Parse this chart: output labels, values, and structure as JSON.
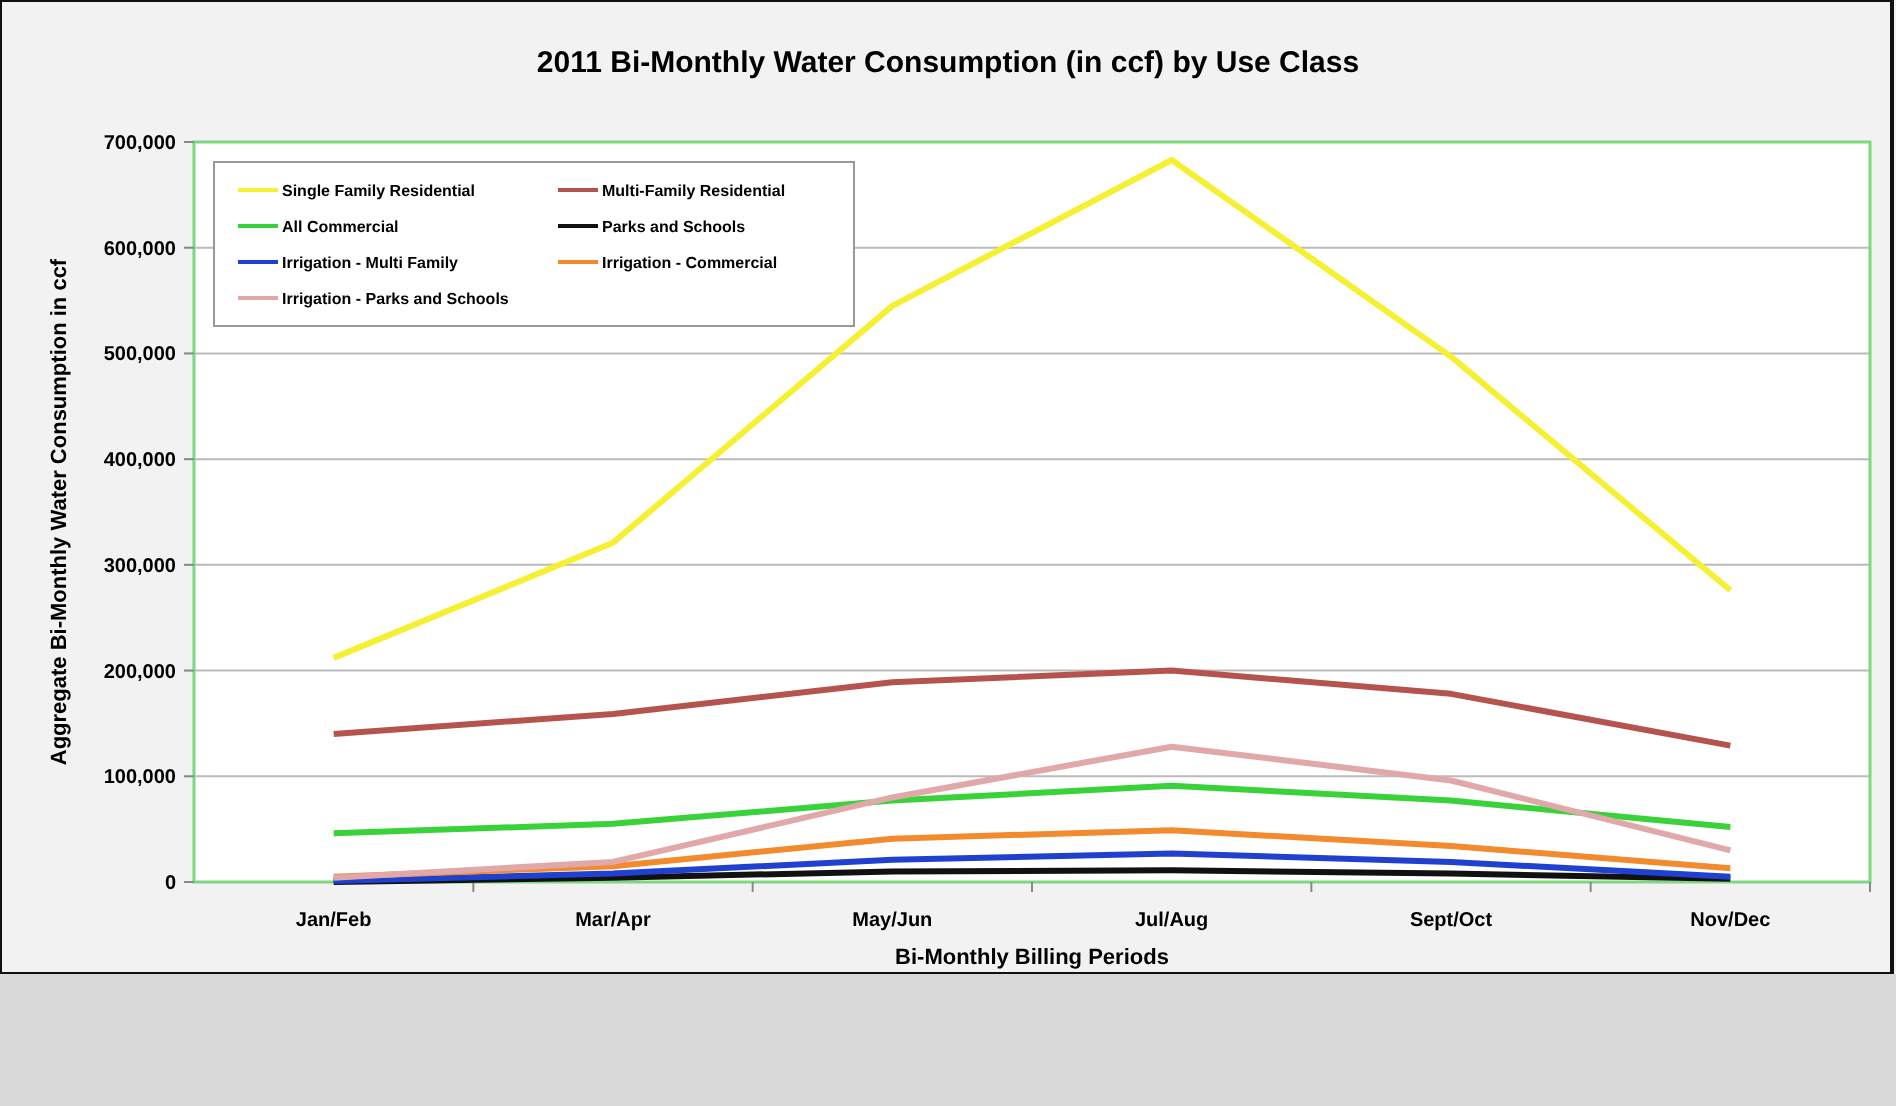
{
  "chart_data": {
    "type": "line",
    "title": "2011 Bi-Monthly Water Consumption (in ccf) by Use Class",
    "xlabel": "Bi-Monthly Billing Periods",
    "ylabel": "Aggregate Bi-Monthly Water Consumption in ccf",
    "categories": [
      "Jan/Feb",
      "Mar/Apr",
      "May/Jun",
      "Jul/Aug",
      "Sept/Oct",
      "Nov/Dec"
    ],
    "ylim": [
      0,
      700000
    ],
    "yticks": [
      {
        "value": 0,
        "label": "0"
      },
      {
        "value": 100000,
        "label": "100,000"
      },
      {
        "value": 200000,
        "label": "200,000"
      },
      {
        "value": 300000,
        "label": "300,000"
      },
      {
        "value": 400000,
        "label": "400,000"
      },
      {
        "value": 500000,
        "label": "500,000"
      },
      {
        "value": 600000,
        "label": "600,000"
      },
      {
        "value": 700000,
        "label": "700,000"
      }
    ],
    "grid": "y",
    "legend": "top left",
    "marker": "none",
    "series": [
      {
        "name": "Single Family Residential",
        "color": "#f5f032",
        "values": [
          212000,
          321000,
          545000,
          683000,
          497000,
          276000
        ]
      },
      {
        "name": "Multi-Family Residential",
        "color": "#b5534f",
        "values": [
          140000,
          159000,
          189000,
          200000,
          178000,
          129000
        ]
      },
      {
        "name": "All Commercial",
        "color": "#3ad23a",
        "values": [
          46000,
          55000,
          77000,
          91000,
          77000,
          52000
        ]
      },
      {
        "name": "Parks and Schools",
        "color": "#111111",
        "values": [
          0,
          4000,
          10000,
          11000,
          8000,
          3000
        ]
      },
      {
        "name": "Irrigation - Multi Family",
        "color": "#2040d0",
        "values": [
          1000,
          8000,
          21000,
          27000,
          19000,
          5000
        ]
      },
      {
        "name": "Irrigation - Commercial",
        "color": "#f28a2e",
        "values": [
          5000,
          15000,
          41000,
          49000,
          34000,
          13000
        ]
      },
      {
        "name": "Irrigation - Parks and Schools",
        "color": "#e0a8a8",
        "values": [
          4000,
          19000,
          80000,
          128000,
          96000,
          30000
        ]
      }
    ]
  }
}
